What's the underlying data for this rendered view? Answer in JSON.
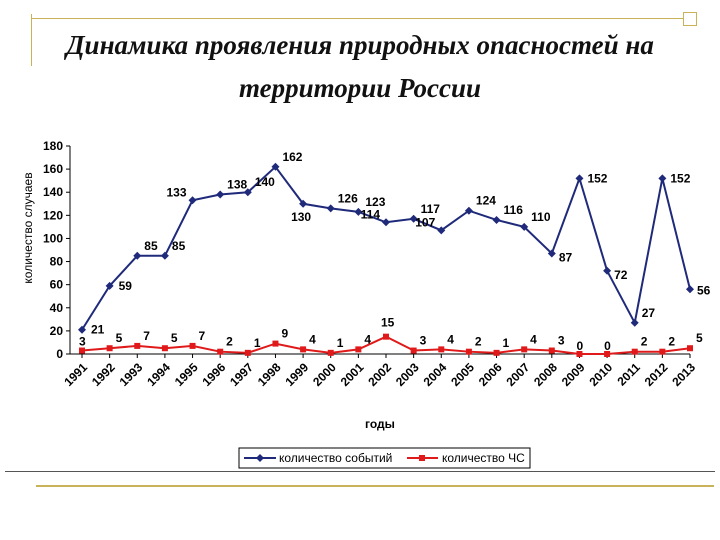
{
  "slide": {
    "title_line1": "Динамика проявления природных опасностей на",
    "title_line2": "территории России"
  },
  "colors": {
    "series1": "#1f2a7a",
    "series2": "#e01a1a",
    "decor": "#c8b25a"
  },
  "chart_data": {
    "type": "line",
    "title": "",
    "xlabel": "годы",
    "ylabel": "количество случаев",
    "ylim": [
      0,
      180
    ],
    "yticks": [
      0,
      20,
      40,
      60,
      80,
      100,
      120,
      140,
      160,
      180
    ],
    "grid": false,
    "legend": "bottom",
    "x": [
      "1991",
      "1992",
      "1993",
      "1994",
      "1995",
      "1996",
      "1997",
      "1998",
      "1999",
      "2000",
      "2001",
      "2002",
      "2003",
      "2004",
      "2005",
      "2006",
      "2007",
      "2008",
      "2009",
      "2010",
      "2011",
      "2012",
      "2013"
    ],
    "series": [
      {
        "name": "количество событий",
        "values": [
          21,
          59,
          85,
          85,
          133,
          138,
          140,
          162,
          130,
          126,
          123,
          114,
          117,
          107,
          124,
          116,
          110,
          87,
          152,
          72,
          27,
          152,
          56
        ],
        "marker": "diamond"
      },
      {
        "name": "количество ЧС",
        "values": [
          3,
          5,
          7,
          5,
          7,
          2,
          1,
          9,
          4,
          1,
          4,
          15,
          3,
          4,
          2,
          1,
          4,
          3,
          0,
          0,
          2,
          2,
          5
        ],
        "marker": "square"
      }
    ]
  }
}
